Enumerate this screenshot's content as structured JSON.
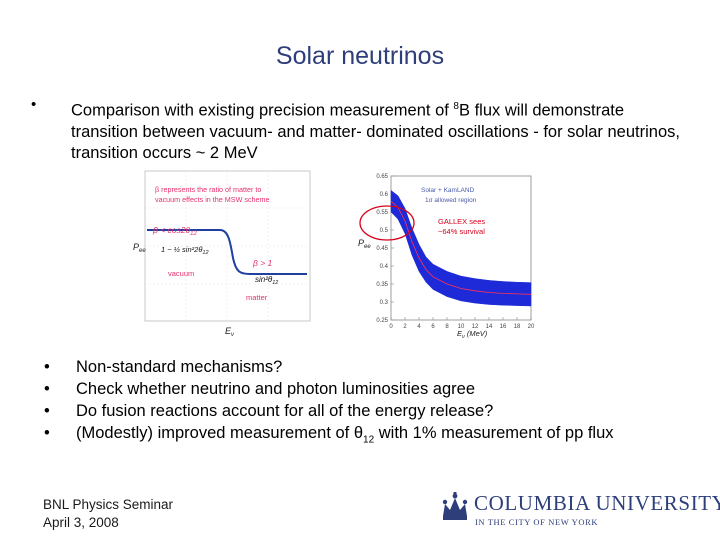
{
  "slide": {
    "title": "Solar neutrinos",
    "main_bullet": {
      "marker": "•",
      "text_before_sup": "Comparison with existing precision measurement of ",
      "sup": "8",
      "text_after_sup": "B flux will demonstrate transition between vacuum- and matter- dominated oscillations - for solar neutrinos, transition occurs ~ 2 MeV"
    },
    "bullets": [
      {
        "marker": "•",
        "text": "Non-standard mechanisms?"
      },
      {
        "marker": "•",
        "text": "Check whether neutrino and photon luminosities agree"
      },
      {
        "marker": "•",
        "text": "Do fusion reactions account for all of the energy release?"
      },
      {
        "marker": "•",
        "text_before_sub": "(Modestly) improved measurement of θ",
        "sub": "12",
        "text_after_sub": " with 1% measurement of pp flux"
      }
    ],
    "footer": {
      "line1": "BNL Physics Seminar",
      "line2": "April 3, 2008"
    },
    "logo": {
      "main": "COLUMBIA UNIVERSITY",
      "sub": "IN THE CITY OF NEW YORK",
      "icon": "crown-icon"
    }
  },
  "figure_left": {
    "note_line1": "β represents the ratio of matter to",
    "note_line2": "vacuum effects in the MSW scheme",
    "eq_left_beta": "β < cos2θ",
    "eq_left_sub": "12",
    "eq_left_frac": "1 − ½ sin²2θ",
    "eq_left_frac_sub": "12",
    "eq_right_beta": "β > 1",
    "eq_right_val": "sin²θ",
    "eq_right_sub": "12",
    "label_vacuum": "vacuum",
    "label_matter": "matter",
    "ylabel": "P",
    "ylabel_sub": "ee",
    "xlabel": "E",
    "xlabel_sub": "ν"
  },
  "figure_right": {
    "legend_line1": "Solar + KamLAND",
    "legend_line2": "1σ allowed region",
    "annotation_line1": "GALLEX sees",
    "annotation_line2": "~64% survival",
    "ylabel": "P",
    "ylabel_sub": "ee",
    "xlabel": "E",
    "xlabel_sub": "ν",
    "xlabel_unit": " (MeV)",
    "yticks": [
      "0.65",
      "0.6",
      "0.55",
      "0.5",
      "0.45",
      "0.4",
      "0.35",
      "0.3",
      "0.25"
    ],
    "xticks": [
      "0",
      "2",
      "4",
      "6",
      "8",
      "10",
      "12",
      "14",
      "16",
      "18",
      "20"
    ],
    "colors": {
      "band": "#1e2ad8",
      "annotation": "#d6001c",
      "text_pink": "#e6306a"
    }
  },
  "chart_data": {
    "type": "area",
    "title": "",
    "xlabel": "Eν (MeV)",
    "ylabel": "Pee",
    "xlim": [
      0,
      20
    ],
    "ylim": [
      0.25,
      0.65
    ],
    "x": [
      0,
      1,
      2,
      3,
      4,
      5,
      6,
      8,
      10,
      12,
      14,
      16,
      18,
      20
    ],
    "series": [
      {
        "name": "Solar + KamLAND",
        "upper": [
          0.61,
          0.595,
          0.56,
          0.505,
          0.46,
          0.425,
          0.405,
          0.385,
          0.372,
          0.365,
          0.36,
          0.357,
          0.355,
          0.354
        ],
        "lower": [
          0.55,
          0.53,
          0.49,
          0.43,
          0.385,
          0.355,
          0.335,
          0.315,
          0.303,
          0.297,
          0.293,
          0.291,
          0.29,
          0.289
        ]
      }
    ]
  }
}
